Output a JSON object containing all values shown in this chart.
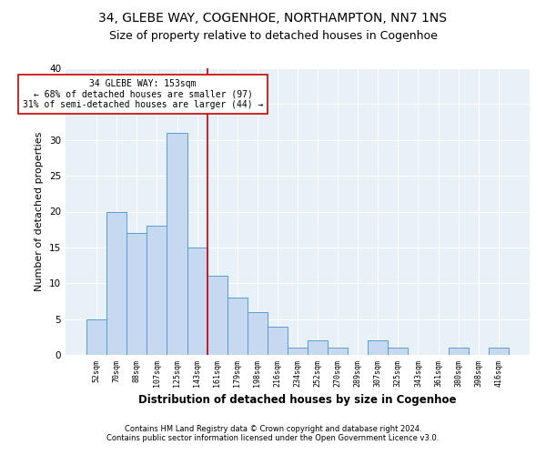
{
  "title1": "34, GLEBE WAY, COGENHOE, NORTHAMPTON, NN7 1NS",
  "title2": "Size of property relative to detached houses in Cogenhoe",
  "xlabel": "Distribution of detached houses by size in Cogenhoe",
  "ylabel": "Number of detached properties",
  "bins": [
    "52sqm",
    "70sqm",
    "88sqm",
    "107sqm",
    "125sqm",
    "143sqm",
    "161sqm",
    "179sqm",
    "198sqm",
    "216sqm",
    "234sqm",
    "252sqm",
    "270sqm",
    "289sqm",
    "307sqm",
    "325sqm",
    "343sqm",
    "361sqm",
    "380sqm",
    "398sqm",
    "416sqm"
  ],
  "values": [
    5,
    20,
    17,
    18,
    31,
    15,
    11,
    8,
    6,
    4,
    1,
    2,
    1,
    0,
    2,
    1,
    0,
    0,
    1,
    0,
    1
  ],
  "bar_color": "#c6d9f0",
  "bar_edge_color": "#5b9bd5",
  "vline_x": 5.5,
  "vline_color": "#cc0000",
  "annotation_line1": "34 GLEBE WAY: 153sqm",
  "annotation_line2": "← 68% of detached houses are smaller (97)",
  "annotation_line3": "31% of semi-detached houses are larger (44) →",
  "annotation_box_color": "#cc0000",
  "footer1": "Contains HM Land Registry data © Crown copyright and database right 2024.",
  "footer2": "Contains public sector information licensed under the Open Government Licence v3.0.",
  "ylim": [
    0,
    40
  ],
  "bg_color": "#e8f0f8",
  "grid_color": "#ffffff",
  "title1_fontsize": 10,
  "title2_fontsize": 9,
  "xlabel_fontsize": 8.5,
  "ylabel_fontsize": 8
}
